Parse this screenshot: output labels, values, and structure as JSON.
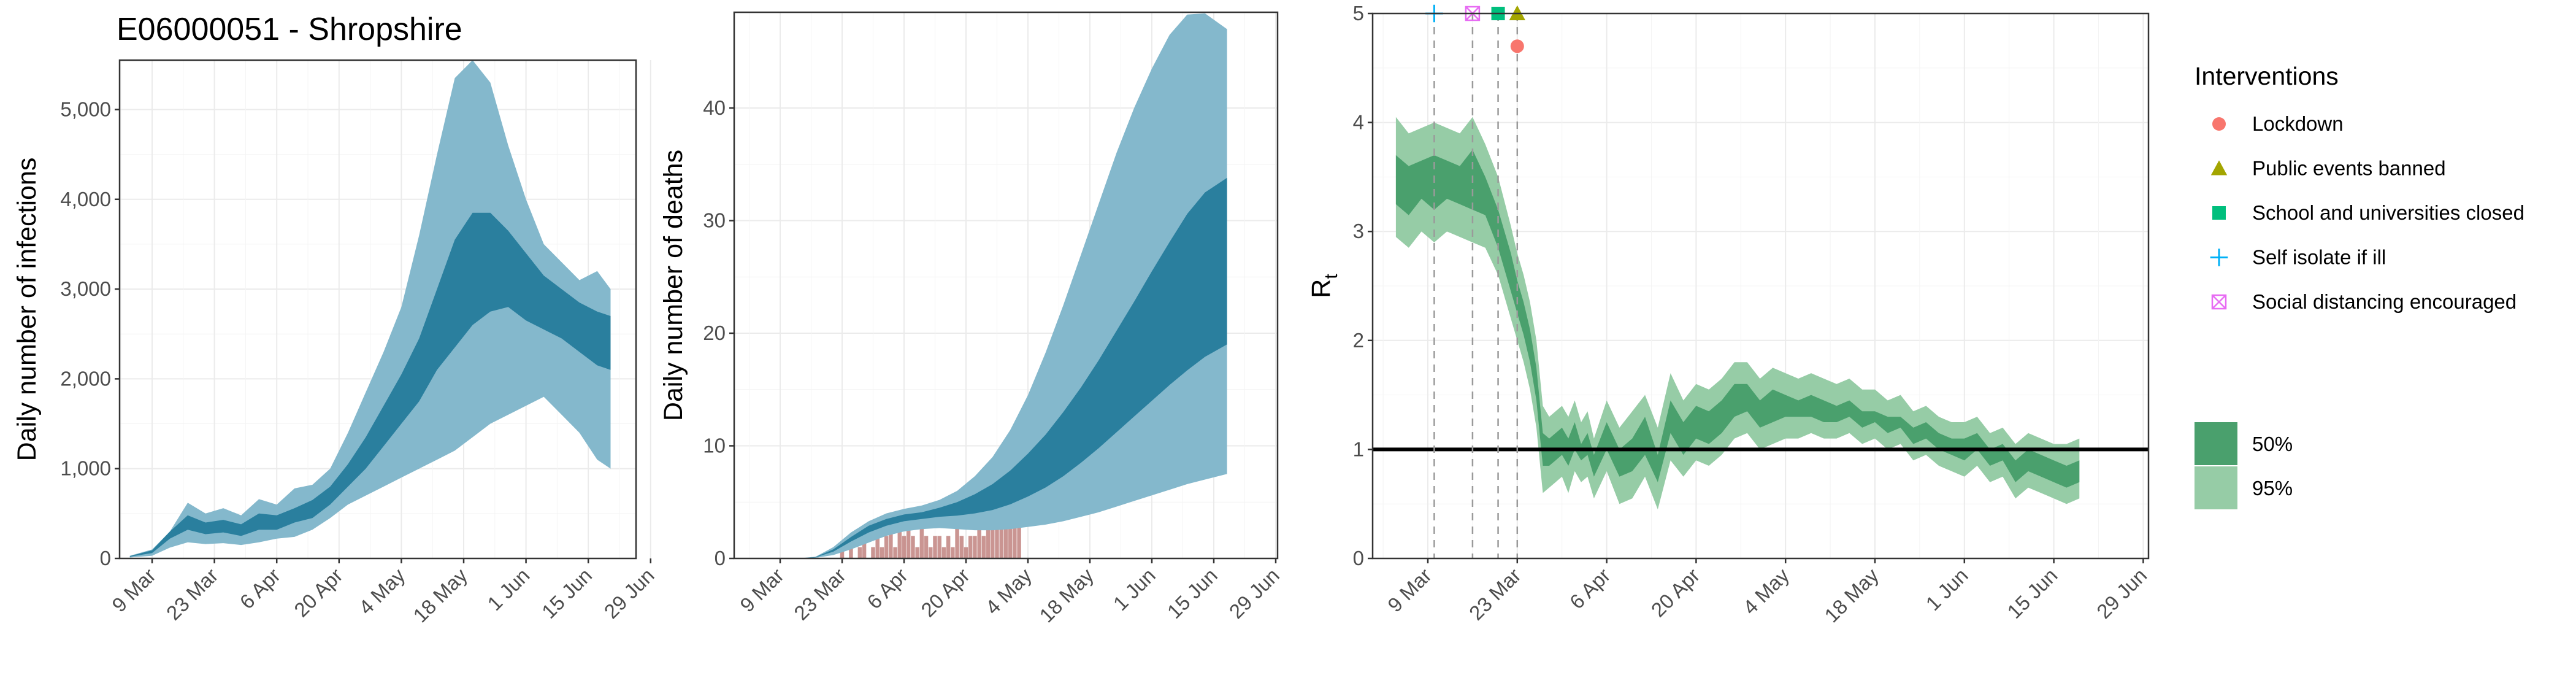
{
  "figure_title": "E06000051 - Shropshire",
  "colors": {
    "infections_50": "#2a7f9e",
    "infections_95": "#84b8cc",
    "deaths_observed": "#c48a86",
    "rt_50": "#4aa06d",
    "rt_95": "#96cca6",
    "lockdown": "#f8766d",
    "public_events_banned": "#a3a500",
    "schools_closed": "#00bf7d",
    "self_isolate": "#00b0f6",
    "social_distancing": "#e76bf3"
  },
  "chart_data": [
    {
      "type": "area",
      "ylabel": "Daily number of infections",
      "x_tick_labels": [
        "9 Mar",
        "23 Mar",
        "6 Apr",
        "20 Apr",
        "4 May",
        "18 May",
        "1 Jun",
        "15 Jun",
        "29 Jun"
      ],
      "y_ticks": [
        0,
        1000,
        2000,
        3000,
        4000,
        5000
      ],
      "y_tick_labels": [
        "0",
        "1,000",
        "2,000",
        "3,000",
        "4,000",
        "5,000"
      ],
      "ylim": [
        0,
        5550
      ],
      "x_days_from_9_mar": [
        -5,
        0,
        4,
        8,
        12,
        16,
        20,
        24,
        28,
        32,
        36,
        40,
        44,
        48,
        52,
        56,
        60,
        64,
        68,
        72,
        76,
        80,
        84,
        88,
        92,
        96,
        100,
        103
      ],
      "band_95_lower": [
        10,
        30,
        120,
        180,
        160,
        170,
        150,
        180,
        220,
        240,
        320,
        450,
        600,
        700,
        800,
        900,
        1000,
        1100,
        1200,
        1350,
        1500,
        1600,
        1700,
        1800,
        1600,
        1400,
        1100,
        1000
      ],
      "band_95_upper": [
        30,
        100,
        300,
        620,
        500,
        560,
        480,
        660,
        600,
        780,
        820,
        1000,
        1400,
        1850,
        2300,
        2800,
        3600,
        4500,
        5350,
        5550,
        5300,
        4600,
        4000,
        3500,
        3300,
        3100,
        3200,
        3000
      ],
      "band_50_lower": [
        20,
        60,
        220,
        320,
        270,
        290,
        250,
        320,
        320,
        400,
        450,
        600,
        800,
        1000,
        1250,
        1500,
        1750,
        2100,
        2350,
        2600,
        2750,
        2800,
        2650,
        2550,
        2450,
        2300,
        2150,
        2100
      ],
      "band_50_upper": [
        25,
        90,
        300,
        480,
        400,
        430,
        380,
        500,
        480,
        560,
        650,
        800,
        1050,
        1350,
        1700,
        2050,
        2450,
        3000,
        3550,
        3850,
        3850,
        3650,
        3400,
        3150,
        3000,
        2850,
        2750,
        2700
      ]
    },
    {
      "type": "area",
      "ylabel": "Daily number of deaths",
      "x_tick_labels": [
        "9 Mar",
        "23 Mar",
        "6 Apr",
        "20 Apr",
        "4 May",
        "18 May",
        "1 Jun",
        "15 Jun",
        "29 Jun"
      ],
      "y_ticks": [
        0,
        10,
        20,
        30,
        40
      ],
      "y_tick_labels": [
        "0",
        "10",
        "20",
        "30",
        "40"
      ],
      "ylim": [
        0,
        48.5
      ],
      "x_days_from_9_mar": [
        -4,
        4,
        8,
        12,
        16,
        20,
        24,
        28,
        32,
        36,
        40,
        44,
        48,
        52,
        56,
        60,
        64,
        68,
        72,
        76,
        80,
        84,
        88,
        92,
        96,
        101
      ],
      "band_95_lower": [
        0,
        0,
        0.05,
        0.3,
        0.8,
        1.4,
        2.0,
        2.4,
        2.6,
        2.7,
        2.6,
        2.5,
        2.5,
        2.6,
        2.8,
        3.0,
        3.3,
        3.7,
        4.1,
        4.6,
        5.1,
        5.6,
        6.1,
        6.6,
        7.0,
        7.5
      ],
      "band_95_upper": [
        0,
        0,
        0.15,
        1.0,
        2.3,
        3.3,
        4.0,
        4.4,
        4.7,
        5.2,
        6.0,
        7.3,
        9.0,
        11.4,
        14.5,
        18.3,
        22.5,
        27.0,
        31.5,
        36.0,
        40.0,
        43.5,
        46.5,
        48.3,
        48.4,
        47.0
      ],
      "band_50_lower": [
        0,
        0,
        0.1,
        0.6,
        1.5,
        2.3,
        2.9,
        3.3,
        3.5,
        3.7,
        3.8,
        4.0,
        4.3,
        4.8,
        5.5,
        6.3,
        7.3,
        8.5,
        9.8,
        11.2,
        12.6,
        14.0,
        15.4,
        16.7,
        17.9,
        19.0
      ],
      "band_50_upper": [
        0,
        0,
        0.12,
        0.8,
        1.9,
        2.9,
        3.5,
        3.9,
        4.1,
        4.5,
        5.0,
        5.7,
        6.6,
        7.8,
        9.3,
        11.0,
        13.0,
        15.2,
        17.6,
        20.2,
        22.8,
        25.5,
        28.1,
        30.6,
        32.5,
        33.8
      ],
      "observed_days_from_9_mar": [
        14,
        15,
        16,
        17,
        18,
        19,
        20,
        21,
        22,
        23,
        24,
        25,
        26,
        27,
        28,
        29,
        30,
        31,
        32,
        33,
        34,
        35,
        36,
        37,
        38,
        39,
        40,
        41,
        42,
        43,
        44,
        45,
        46,
        47,
        48,
        49,
        50,
        51,
        52,
        53,
        54
      ],
      "observed_deaths": [
        1,
        0,
        1,
        0,
        1,
        2,
        0,
        1,
        2,
        1,
        2,
        3,
        1,
        3,
        2,
        3,
        2,
        1,
        3,
        2,
        1,
        2,
        2,
        1,
        2,
        1,
        3,
        2,
        1,
        2,
        2,
        3,
        2,
        4,
        3,
        5,
        4,
        5,
        3,
        5,
        4
      ]
    },
    {
      "type": "area",
      "ylabel_main": "R",
      "ylabel_sub": "t",
      "x_tick_labels": [
        "9 Mar",
        "23 Mar",
        "6 Apr",
        "20 Apr",
        "4 May",
        "18 May",
        "1 Jun",
        "15 Jun",
        "29 Jun"
      ],
      "y_ticks": [
        0,
        1,
        2,
        3,
        4,
        5
      ],
      "y_tick_labels": [
        "0",
        "1",
        "2",
        "3",
        "4",
        "5"
      ],
      "ylim": [
        0,
        5
      ],
      "reference_line": 1,
      "x_days_from_9_mar": [
        -5,
        -3,
        -1,
        1,
        3,
        5,
        7,
        9,
        11,
        13,
        14,
        15,
        16,
        17,
        18,
        19,
        20,
        21,
        22,
        23,
        24,
        25,
        26,
        28,
        30,
        32,
        34,
        36,
        38,
        40,
        42,
        44,
        46,
        48,
        50,
        52,
        54,
        56,
        58,
        60,
        62,
        64,
        66,
        68,
        70,
        72,
        74,
        76,
        78,
        80,
        82,
        84,
        86,
        88,
        90,
        92,
        94,
        96,
        98,
        100,
        102
      ],
      "band_95_lower": [
        2.95,
        2.85,
        3.0,
        2.9,
        3.0,
        2.95,
        2.9,
        2.85,
        2.6,
        2.2,
        2.0,
        1.8,
        1.55,
        1.2,
        0.6,
        0.65,
        0.7,
        0.75,
        0.6,
        0.8,
        0.7,
        0.75,
        0.55,
        0.8,
        0.5,
        0.55,
        0.75,
        0.45,
        0.9,
        0.75,
        0.9,
        0.85,
        0.95,
        1.1,
        1.15,
        1.0,
        1.05,
        1.1,
        1.1,
        1.15,
        1.1,
        1.1,
        1.15,
        1.05,
        1.1,
        1.0,
        1.05,
        0.9,
        0.95,
        0.85,
        0.8,
        0.75,
        0.85,
        0.7,
        0.75,
        0.55,
        0.65,
        0.6,
        0.55,
        0.5,
        0.55
      ],
      "band_95_upper": [
        4.05,
        3.9,
        3.95,
        4.0,
        3.95,
        3.9,
        4.05,
        3.8,
        3.5,
        3.05,
        2.8,
        2.6,
        2.35,
        2.0,
        1.4,
        1.3,
        1.35,
        1.4,
        1.3,
        1.45,
        1.25,
        1.35,
        1.1,
        1.45,
        1.2,
        1.35,
        1.5,
        1.2,
        1.7,
        1.45,
        1.6,
        1.55,
        1.65,
        1.8,
        1.8,
        1.65,
        1.75,
        1.7,
        1.65,
        1.7,
        1.65,
        1.6,
        1.65,
        1.55,
        1.55,
        1.45,
        1.5,
        1.35,
        1.4,
        1.3,
        1.25,
        1.25,
        1.3,
        1.15,
        1.2,
        1.05,
        1.15,
        1.1,
        1.05,
        1.05,
        1.1
      ],
      "band_50_lower": [
        3.25,
        3.15,
        3.3,
        3.2,
        3.3,
        3.25,
        3.2,
        3.15,
        2.85,
        2.45,
        2.25,
        2.05,
        1.8,
        1.45,
        0.85,
        0.85,
        0.9,
        0.95,
        0.85,
        1.0,
        0.9,
        0.95,
        0.75,
        1.0,
        0.75,
        0.8,
        0.95,
        0.7,
        1.15,
        0.95,
        1.1,
        1.05,
        1.15,
        1.3,
        1.35,
        1.2,
        1.25,
        1.3,
        1.3,
        1.3,
        1.25,
        1.25,
        1.3,
        1.2,
        1.25,
        1.15,
        1.2,
        1.05,
        1.1,
        1.0,
        0.95,
        0.9,
        1.0,
        0.85,
        0.9,
        0.7,
        0.8,
        0.75,
        0.7,
        0.65,
        0.7
      ],
      "band_50_upper": [
        3.7,
        3.6,
        3.65,
        3.7,
        3.65,
        3.6,
        3.75,
        3.5,
        3.2,
        2.8,
        2.55,
        2.35,
        2.1,
        1.75,
        1.15,
        1.1,
        1.15,
        1.2,
        1.1,
        1.25,
        1.05,
        1.15,
        0.95,
        1.25,
        1.0,
        1.1,
        1.3,
        0.95,
        1.45,
        1.25,
        1.4,
        1.35,
        1.45,
        1.6,
        1.6,
        1.45,
        1.55,
        1.5,
        1.45,
        1.5,
        1.45,
        1.4,
        1.45,
        1.35,
        1.35,
        1.3,
        1.3,
        1.2,
        1.25,
        1.15,
        1.1,
        1.1,
        1.15,
        1.0,
        1.05,
        0.9,
        1.0,
        0.95,
        0.9,
        0.85,
        0.9
      ],
      "interventions": [
        {
          "name": "Self isolate if ill",
          "day": 1,
          "y": 5.0,
          "shape": "plus",
          "color_key": "self_isolate"
        },
        {
          "name": "Social distancing encouraged",
          "day": 7,
          "y": 5.0,
          "shape": "boxcross",
          "color_key": "social_distancing"
        },
        {
          "name": "School and universities closed",
          "day": 11,
          "y": 5.0,
          "shape": "square",
          "color_key": "schools_closed"
        },
        {
          "name": "Public events banned",
          "day": 14,
          "y": 5.0,
          "shape": "triangle",
          "color_key": "public_events_banned"
        },
        {
          "name": "Lockdown",
          "day": 14,
          "y": 4.7,
          "shape": "circle",
          "color_key": "lockdown"
        }
      ]
    }
  ],
  "legend": {
    "title": "Interventions",
    "placement": "right",
    "items": [
      {
        "label": "Lockdown",
        "shape": "circle",
        "color_key": "lockdown"
      },
      {
        "label": "Public events banned",
        "shape": "triangle",
        "color_key": "public_events_banned"
      },
      {
        "label": "School and universities closed",
        "shape": "square",
        "color_key": "schools_closed"
      },
      {
        "label": "Self isolate if ill",
        "shape": "plus",
        "color_key": "self_isolate"
      },
      {
        "label": "Social distancing encouraged",
        "shape": "boxcross",
        "color_key": "social_distancing"
      }
    ],
    "ci_items": [
      {
        "label": "50%",
        "color_key": "rt_50"
      },
      {
        "label": "95%",
        "color_key": "rt_95"
      }
    ]
  }
}
